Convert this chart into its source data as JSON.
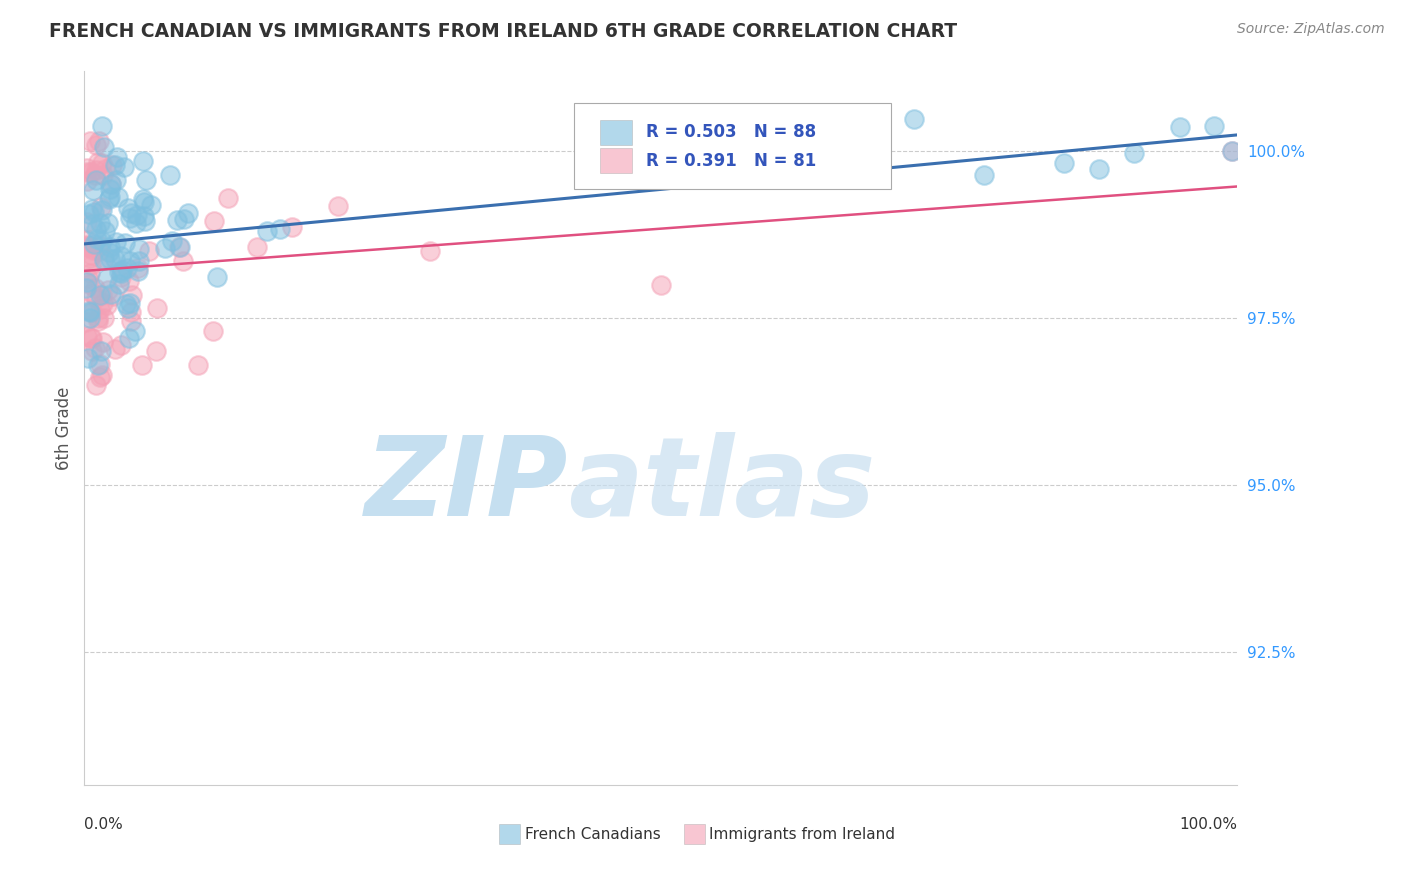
{
  "title": "FRENCH CANADIAN VS IMMIGRANTS FROM IRELAND 6TH GRADE CORRELATION CHART",
  "source": "Source: ZipAtlas.com",
  "ylabel": "6th Grade",
  "xlim": [
    0.0,
    100.0
  ],
  "ylim": [
    90.5,
    101.2
  ],
  "yticks": [
    92.5,
    95.0,
    97.5,
    100.0
  ],
  "ytick_labels": [
    "92.5%",
    "95.0%",
    "97.5%",
    "100.0%"
  ],
  "legend_blue_r": "R = 0.503",
  "legend_blue_n": "N = 88",
  "legend_pink_r": "R = 0.391",
  "legend_pink_n": "N = 81",
  "legend_label_blue": "French Canadians",
  "legend_label_pink": "Immigrants from Ireland",
  "blue_color": "#7fbfdf",
  "pink_color": "#f4a0b5",
  "trendline_blue": "#3a6faf",
  "trendline_pink": "#e05080",
  "watermark_zip": "ZIP",
  "watermark_atlas": "atlas",
  "background_color": "#ffffff",
  "grid_color": "#cccccc",
  "watermark_color_zip": "#c5dff0",
  "watermark_color_atlas": "#c8dff0"
}
